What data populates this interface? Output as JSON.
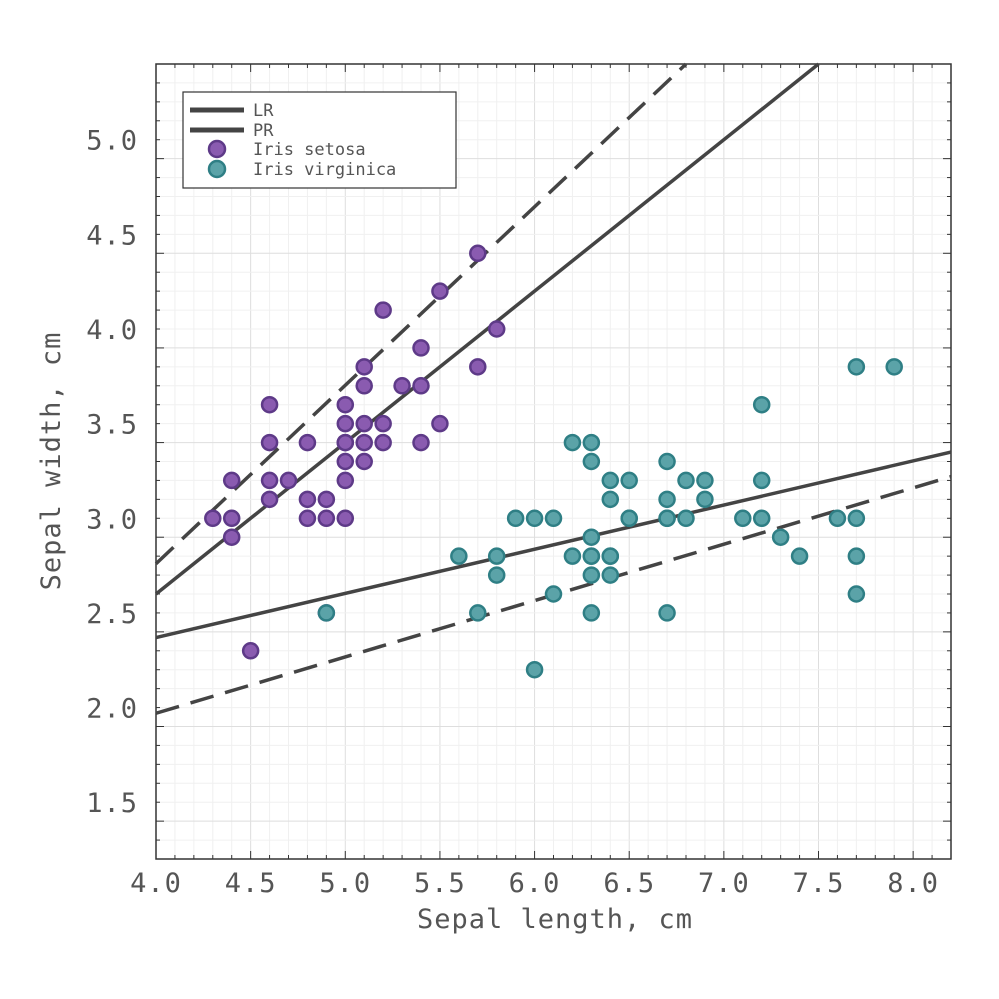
{
  "chart_data": {
    "type": "scatter",
    "title": "",
    "xlabel": "Sepal length, cm",
    "ylabel": "Sepal width, cm",
    "xlim": [
      4.0,
      8.2
    ],
    "ylim": [
      1.2,
      5.4
    ],
    "xticks": [
      "4.0",
      "4.5",
      "5.0",
      "5.5",
      "6.0",
      "6.5",
      "7.0",
      "7.5",
      "8.0"
    ],
    "yticks": [
      "1.5",
      "2.0",
      "2.5",
      "3.0",
      "3.5",
      "4.0",
      "4.5",
      "5.0"
    ],
    "grid": true,
    "legend_position": "top-left",
    "series": [
      {
        "name": "Iris setosa",
        "color": "#8a5bb0",
        "edge_color": "#5e3a88",
        "x": [
          4.3,
          4.4,
          4.4,
          4.4,
          4.5,
          4.6,
          4.6,
          4.6,
          4.6,
          4.7,
          4.8,
          4.8,
          4.8,
          4.9,
          4.9,
          4.9,
          5.0,
          5.0,
          5.0,
          5.0,
          5.0,
          5.0,
          5.0,
          5.1,
          5.1,
          5.1,
          5.1,
          5.1,
          5.2,
          5.2,
          5.2,
          5.3,
          5.4,
          5.4,
          5.4,
          5.5,
          5.5,
          5.7,
          5.7,
          5.8
        ],
        "y": [
          3.0,
          2.9,
          3.0,
          3.2,
          2.3,
          3.1,
          3.2,
          3.4,
          3.6,
          3.2,
          3.0,
          3.1,
          3.4,
          3.0,
          3.1,
          2.5,
          3.0,
          3.2,
          3.3,
          3.4,
          3.5,
          3.6,
          3.4,
          3.3,
          3.4,
          3.5,
          3.7,
          3.8,
          3.4,
          3.5,
          4.1,
          3.7,
          3.4,
          3.7,
          3.9,
          3.5,
          4.2,
          3.8,
          4.4,
          4.0
        ]
      },
      {
        "name": "Iris virginica",
        "color": "#5ba3a8",
        "edge_color": "#2f7f85",
        "x": [
          4.9,
          5.6,
          5.7,
          5.8,
          5.8,
          5.9,
          6.0,
          6.0,
          6.1,
          6.1,
          6.2,
          6.2,
          6.3,
          6.3,
          6.3,
          6.3,
          6.3,
          6.3,
          6.3,
          6.4,
          6.4,
          6.4,
          6.4,
          6.4,
          6.5,
          6.5,
          6.5,
          6.7,
          6.7,
          6.7,
          6.7,
          6.7,
          6.8,
          6.8,
          6.9,
          6.9,
          7.1,
          7.2,
          7.2,
          7.2,
          7.3,
          7.4,
          7.6,
          7.7,
          7.7,
          7.7,
          7.7,
          7.9
        ],
        "y": [
          2.5,
          2.8,
          2.5,
          2.7,
          2.8,
          3.0,
          2.2,
          3.0,
          2.6,
          3.0,
          2.8,
          3.4,
          2.5,
          2.7,
          2.8,
          2.9,
          3.3,
          3.4,
          2.8,
          2.7,
          2.8,
          3.1,
          3.2,
          2.8,
          3.0,
          3.0,
          3.2,
          2.5,
          3.0,
          3.1,
          3.3,
          3.0,
          3.0,
          3.2,
          3.1,
          3.2,
          3.0,
          3.0,
          3.2,
          3.6,
          2.9,
          2.8,
          3.0,
          2.6,
          2.8,
          3.0,
          3.8,
          3.8
        ]
      }
    ],
    "lines": [
      {
        "name": "LR",
        "style": "solid",
        "group": "Iris setosa",
        "x": [
          4.0,
          7.5
        ],
        "y": [
          2.6,
          5.4
        ]
      },
      {
        "name": "PR",
        "style": "dashed",
        "group": "Iris setosa",
        "x": [
          4.0,
          6.8
        ],
        "y": [
          2.76,
          5.4
        ]
      },
      {
        "name": "LR",
        "style": "solid",
        "group": "Iris virginica",
        "x": [
          4.0,
          8.2
        ],
        "y": [
          2.37,
          3.35
        ]
      },
      {
        "name": "PR",
        "style": "dashed",
        "group": "Iris virginica",
        "x": [
          4.0,
          8.2
        ],
        "y": [
          1.97,
          3.22
        ]
      }
    ],
    "legend": [
      {
        "label": "LR",
        "kind": "line"
      },
      {
        "label": "PR",
        "kind": "line"
      },
      {
        "label": "Iris setosa",
        "kind": "marker",
        "color": "#8a5bb0",
        "edge_color": "#5e3a88"
      },
      {
        "label": "Iris virginica",
        "kind": "marker",
        "color": "#5ba3a8",
        "edge_color": "#2f7f85"
      }
    ],
    "line_color": "#444444"
  }
}
